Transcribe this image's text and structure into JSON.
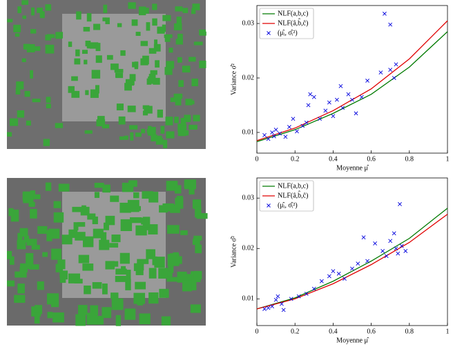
{
  "chart_data": [
    {
      "type": "scatter",
      "xlabel": "Moyenne μ̂",
      "ylabel": "Variance σ̂²",
      "xlim": [
        0,
        1
      ],
      "ylim": [
        0.0062,
        0.0333
      ],
      "xticks": [
        0,
        0.2,
        0.4,
        0.6,
        0.8,
        1
      ],
      "yticks": [
        0.01,
        0.02,
        0.03
      ],
      "legend": "upper left",
      "series": [
        {
          "name": "NLF(a,b,c)",
          "color": "#007a00",
          "kind": "line",
          "x": [
            0,
            0.2,
            0.4,
            0.6,
            0.8,
            1
          ],
          "values": [
            0.0083,
            0.0105,
            0.0135,
            0.017,
            0.022,
            0.0285
          ]
        },
        {
          "name": "NLF(â,b̂,ĉ)",
          "color": "#e00000",
          "kind": "line",
          "x": [
            0,
            0.2,
            0.4,
            0.6,
            0.8,
            1
          ],
          "values": [
            0.0085,
            0.0108,
            0.014,
            0.018,
            0.0235,
            0.0305
          ]
        },
        {
          "name": "(μ̂ᵢ, σ̂ᵢ²)",
          "color": "#0000dd",
          "kind": "marker",
          "x": [
            0.04,
            0.06,
            0.08,
            0.09,
            0.1,
            0.12,
            0.15,
            0.17,
            0.19,
            0.21,
            0.24,
            0.26,
            0.27,
            0.28,
            0.3,
            0.33,
            0.36,
            0.38,
            0.4,
            0.42,
            0.44,
            0.45,
            0.48,
            0.5,
            0.52,
            0.55,
            0.58,
            0.65,
            0.67,
            0.7,
            0.7,
            0.72,
            0.73
          ],
          "values": [
            0.0095,
            0.0088,
            0.01,
            0.0093,
            0.0105,
            0.0098,
            0.0092,
            0.011,
            0.0125,
            0.0102,
            0.0112,
            0.0118,
            0.015,
            0.017,
            0.0165,
            0.0125,
            0.014,
            0.0155,
            0.013,
            0.016,
            0.0185,
            0.0145,
            0.017,
            0.016,
            0.0135,
            0.0165,
            0.0195,
            0.021,
            0.0318,
            0.0298,
            0.0215,
            0.02,
            0.0225
          ]
        }
      ]
    },
    {
      "type": "scatter",
      "xlabel": "Moyenne μ̂",
      "ylabel": "Variance σ̂²",
      "xlim": [
        0,
        1
      ],
      "ylim": [
        0.0047,
        0.034
      ],
      "xticks": [
        0,
        0.2,
        0.4,
        0.6,
        0.8,
        1
      ],
      "yticks": [
        0.01,
        0.02,
        0.03
      ],
      "legend": "upper left",
      "series": [
        {
          "name": "NLF(a,b,c)",
          "color": "#007a00",
          "kind": "line",
          "x": [
            0,
            0.2,
            0.4,
            0.6,
            0.8,
            1
          ],
          "values": [
            0.008,
            0.0102,
            0.0135,
            0.0175,
            0.022,
            0.028
          ]
        },
        {
          "name": "NLF(â,b̂,ĉ)",
          "color": "#e00000",
          "kind": "line",
          "x": [
            0,
            0.2,
            0.4,
            0.6,
            0.8,
            1
          ],
          "values": [
            0.008,
            0.01,
            0.013,
            0.0168,
            0.0212,
            0.0268
          ]
        },
        {
          "name": "(μ̂ᵢ, σ̂ᵢ²)",
          "color": "#0000dd",
          "kind": "marker",
          "x": [
            0.04,
            0.06,
            0.08,
            0.1,
            0.11,
            0.13,
            0.14,
            0.18,
            0.22,
            0.26,
            0.3,
            0.34,
            0.38,
            0.4,
            0.43,
            0.46,
            0.5,
            0.53,
            0.56,
            0.58,
            0.62,
            0.66,
            0.68,
            0.7,
            0.72,
            0.73,
            0.74,
            0.75,
            0.76,
            0.78
          ],
          "values": [
            0.008,
            0.0082,
            0.0085,
            0.0098,
            0.0105,
            0.009,
            0.0078,
            0.01,
            0.0105,
            0.011,
            0.012,
            0.0135,
            0.0145,
            0.0155,
            0.015,
            0.014,
            0.016,
            0.017,
            0.0222,
            0.0175,
            0.021,
            0.0195,
            0.0185,
            0.0215,
            0.023,
            0.02,
            0.019,
            0.0288,
            0.0205,
            0.0195
          ]
        }
      ]
    }
  ]
}
